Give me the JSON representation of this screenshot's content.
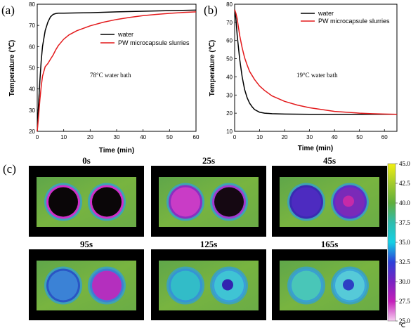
{
  "chart_data": [
    {
      "type": "line",
      "panel_label": "(a)",
      "xlabel": "Time (min)",
      "ylabel": "Temperature (℃)",
      "xlim": [
        0,
        60
      ],
      "ylim": [
        20,
        80
      ],
      "xticks": [
        0,
        10,
        20,
        30,
        40,
        50,
        60
      ],
      "yticks": [
        20,
        30,
        40,
        50,
        60,
        70,
        80
      ],
      "annotation": "78°C water bath",
      "legend_position": "right-middle",
      "grid": false,
      "series": [
        {
          "name": "water",
          "color": "#000000",
          "x": [
            0,
            0.5,
            1,
            1.5,
            2,
            3,
            4,
            5,
            6,
            7,
            8,
            9,
            10,
            15,
            20,
            30,
            40,
            50,
            60
          ],
          "y": [
            20,
            33,
            44,
            53,
            60,
            67.5,
            71.5,
            74,
            75.2,
            75.6,
            75.8,
            75.8,
            75.8,
            75.9,
            76,
            76.4,
            76.7,
            77,
            77.2
          ]
        },
        {
          "name": "PW microcapsule slurries",
          "color": "#e31a1c",
          "x": [
            0,
            0.5,
            1,
            1.5,
            2,
            3,
            4,
            5,
            6,
            7,
            8,
            9,
            10,
            12,
            15,
            20,
            25,
            30,
            35,
            40,
            45,
            50,
            55,
            60
          ],
          "y": [
            20,
            27,
            35,
            41,
            46,
            50.5,
            52,
            54,
            56,
            58.5,
            60.5,
            62,
            63.5,
            65.5,
            67.5,
            69.8,
            71.5,
            72.8,
            73.8,
            74.6,
            75.2,
            75.7,
            76.1,
            76.4
          ]
        }
      ]
    },
    {
      "type": "line",
      "panel_label": "(b)",
      "xlabel": "Time (min)",
      "ylabel": "Temperature (℃)",
      "xlim": [
        0,
        65
      ],
      "ylim": [
        10,
        80
      ],
      "xticks": [
        0,
        10,
        20,
        30,
        40,
        50,
        60
      ],
      "yticks": [
        10,
        20,
        30,
        40,
        50,
        60,
        70,
        80
      ],
      "annotation": "19°C water bath",
      "legend_position": "top-right",
      "grid": false,
      "series": [
        {
          "name": "water",
          "color": "#000000",
          "x": [
            0,
            0.5,
            1,
            2,
            3,
            4,
            5,
            6,
            7,
            8,
            10,
            12,
            15,
            20,
            30,
            40,
            50,
            60,
            65
          ],
          "y": [
            77,
            72,
            63,
            50,
            40,
            33,
            28.5,
            25.5,
            23.5,
            22,
            20.5,
            20,
            19.7,
            19.5,
            19.4,
            19.4,
            19.4,
            19.4,
            19.4
          ]
        },
        {
          "name": "PW microcapsule slurries",
          "color": "#e31a1c",
          "x": [
            0,
            0.5,
            1,
            2,
            3,
            4,
            5,
            6,
            8,
            10,
            12,
            15,
            20,
            25,
            30,
            40,
            50,
            55,
            60,
            65
          ],
          "y": [
            77,
            75,
            72,
            63,
            56,
            50.5,
            46.5,
            43,
            38.5,
            35,
            32.5,
            29.5,
            26.5,
            24.5,
            23,
            21,
            20,
            19.7,
            19.5,
            19.4
          ]
        }
      ]
    }
  ],
  "thermal": {
    "panel_label": "(c)",
    "unit": "℃",
    "colorbar_ticks": [
      "45.0",
      "42.5",
      "40.0",
      "37.5",
      "35.0",
      "32.5",
      "30.0",
      "27.5",
      "25.0"
    ],
    "colorbar_stops": [
      "#f1ef10",
      "#a3cb2c",
      "#5fae3c",
      "#2fbcae",
      "#15d0e4",
      "#2c40d8",
      "#7a22c2",
      "#c41fba",
      "#f7cff0"
    ],
    "frames": [
      {
        "time": "0s",
        "left_fill": "#0a0608",
        "left_ring": "#cf2fc9",
        "right_fill": "#0a0608",
        "right_ring": "#cf2fc9",
        "right_core": ""
      },
      {
        "time": "25s",
        "left_fill": "#c93cc6",
        "left_ring": "#8a2fc0",
        "right_fill": "#150812",
        "right_ring": "#a03ad0",
        "right_core": ""
      },
      {
        "time": "45s",
        "left_fill": "#4d2bc0",
        "left_ring": "#3a2ab2",
        "right_fill": "#7a2ab8",
        "right_ring": "#5a30c8",
        "right_core": "#c62aa8"
      },
      {
        "time": "95s",
        "left_fill": "#3b82d6",
        "left_ring": "#2a55c4",
        "right_fill": "#b42fbe",
        "right_ring": "#3d7ed4",
        "right_core": ""
      },
      {
        "time": "125s",
        "left_fill": "#32bcc8",
        "left_ring": "#3594d4",
        "right_fill": "#3fc4d4",
        "right_ring": "#3a9ed8",
        "right_core": "#3224b0"
      },
      {
        "time": "165s",
        "left_fill": "#49c6b8",
        "left_ring": "#3aa0d0",
        "right_fill": "#56cad8",
        "right_ring": "#3ba6d8",
        "right_core": "#2d3fc4"
      }
    ]
  }
}
